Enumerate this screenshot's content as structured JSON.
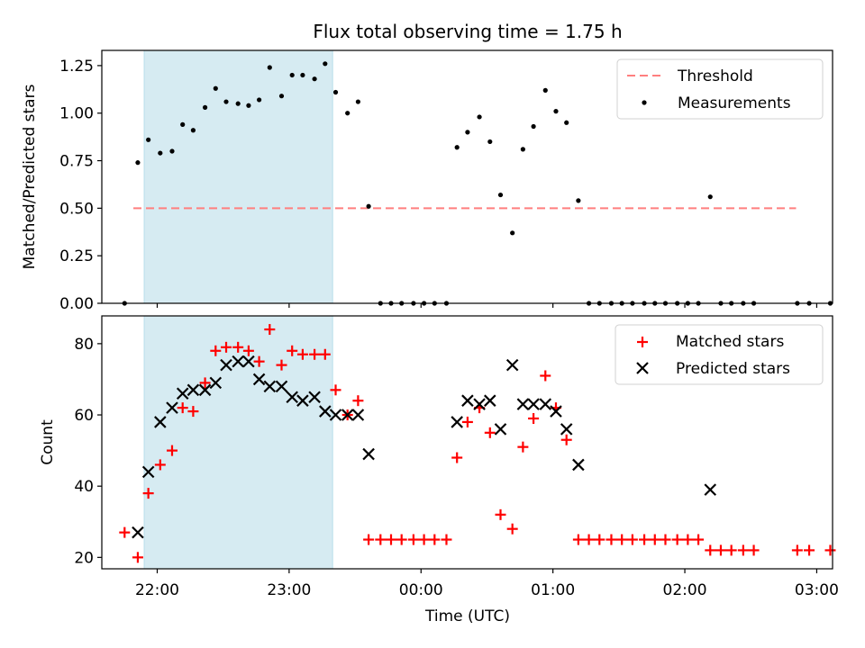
{
  "chart_data": {
    "title": "Flux total observing time = 1.75 h",
    "xlabel": "Time (UTC)",
    "x_unit_note": "hours past 21:00 UTC",
    "x_ticks": [
      {
        "value": 1,
        "label": "22:00"
      },
      {
        "value": 2,
        "label": "23:00"
      },
      {
        "value": 3,
        "label": "00:00"
      },
      {
        "value": 4,
        "label": "01:00"
      },
      {
        "value": 5,
        "label": "02:00"
      },
      {
        "value": 6,
        "label": "03:00"
      }
    ],
    "xlim": [
      0.58,
      6.12
    ],
    "shaded_region": {
      "from": 0.58,
      "to": 2.33,
      "color": "#add8e6"
    },
    "panels": [
      {
        "type": "scatter",
        "ylabel": "Matched/Predicted stars",
        "ylim": [
          0,
          1.33
        ],
        "y_ticks": [
          "0.00",
          "0.25",
          "0.50",
          "0.75",
          "1.00",
          "1.25"
        ],
        "y_tick_values": [
          0,
          0.25,
          0.5,
          0.75,
          1.0,
          1.25
        ],
        "legend_position": "top-right",
        "threshold": {
          "name": "Threshold",
          "y": 0.5,
          "x_range": [
            0.58,
            5.85
          ],
          "color": "#ff7f7f"
        },
        "series": [
          {
            "name": "Measurements",
            "color": "#000000",
            "marker": "dot",
            "points": [
              [
                0.5,
                0.0
              ],
              [
                0.6,
                0.74
              ],
              [
                0.68,
                0.86
              ],
              [
                0.77,
                0.79
              ],
              [
                0.86,
                0.8
              ],
              [
                0.94,
                0.94
              ],
              [
                1.02,
                0.91
              ],
              [
                1.11,
                1.03
              ],
              [
                1.19,
                1.13
              ],
              [
                1.27,
                1.06
              ],
              [
                1.36,
                1.05
              ],
              [
                1.44,
                1.04
              ],
              [
                1.52,
                1.07
              ],
              [
                1.6,
                1.24
              ],
              [
                1.69,
                1.09
              ],
              [
                1.77,
                1.2
              ],
              [
                1.85,
                1.2
              ],
              [
                1.94,
                1.18
              ],
              [
                2.02,
                1.26
              ],
              [
                2.1,
                1.11
              ],
              [
                2.19,
                1.0
              ],
              [
                2.27,
                1.06
              ],
              [
                2.35,
                0.51
              ],
              [
                2.44,
                0.0
              ],
              [
                2.52,
                0.0
              ],
              [
                2.6,
                0.0
              ],
              [
                2.69,
                0.0
              ],
              [
                2.77,
                0.0
              ],
              [
                2.85,
                0.0
              ],
              [
                2.94,
                0.0
              ],
              [
                3.02,
                0.82
              ],
              [
                3.1,
                0.9
              ],
              [
                3.19,
                0.98
              ],
              [
                3.27,
                0.85
              ],
              [
                3.35,
                0.57
              ],
              [
                3.44,
                0.37
              ],
              [
                3.52,
                0.81
              ],
              [
                3.6,
                0.93
              ],
              [
                3.69,
                1.12
              ],
              [
                3.77,
                1.01
              ],
              [
                3.85,
                0.95
              ],
              [
                3.94,
                0.54
              ],
              [
                4.02,
                0.0
              ],
              [
                4.1,
                0.0
              ],
              [
                4.19,
                0.0
              ],
              [
                4.27,
                0.0
              ],
              [
                4.35,
                0.0
              ],
              [
                4.44,
                0.0
              ],
              [
                4.52,
                0.0
              ],
              [
                4.6,
                0.0
              ],
              [
                4.69,
                0.0
              ],
              [
                4.77,
                0.0
              ],
              [
                4.85,
                0.0
              ],
              [
                4.94,
                0.56
              ],
              [
                5.02,
                0.0
              ],
              [
                5.1,
                0.0
              ],
              [
                5.19,
                0.0
              ],
              [
                5.27,
                0.0
              ],
              [
                5.6,
                0.0
              ],
              [
                5.69,
                0.0
              ],
              [
                5.85,
                0.0
              ],
              [
                5.94,
                0.0
              ]
            ]
          }
        ]
      },
      {
        "type": "scatter",
        "ylabel": "Count",
        "ylim": [
          16.8,
          87.8
        ],
        "y_ticks": [
          "20",
          "40",
          "60",
          "80"
        ],
        "y_tick_values": [
          20,
          40,
          60,
          80
        ],
        "legend_position": "top-right",
        "series": [
          {
            "name": "Matched stars",
            "color": "#ff0000",
            "marker": "plus",
            "points": [
              [
                0.5,
                27
              ],
              [
                0.6,
                20
              ],
              [
                0.68,
                38
              ],
              [
                0.77,
                46
              ],
              [
                0.86,
                50
              ],
              [
                0.94,
                62
              ],
              [
                1.02,
                61
              ],
              [
                1.11,
                69
              ],
              [
                1.19,
                78
              ],
              [
                1.27,
                79
              ],
              [
                1.36,
                79
              ],
              [
                1.44,
                78
              ],
              [
                1.52,
                75
              ],
              [
                1.6,
                84
              ],
              [
                1.69,
                74
              ],
              [
                1.77,
                78
              ],
              [
                1.85,
                77
              ],
              [
                1.94,
                77
              ],
              [
                2.02,
                77
              ],
              [
                2.1,
                67
              ],
              [
                2.19,
                60
              ],
              [
                2.27,
                64
              ],
              [
                2.35,
                25
              ],
              [
                2.44,
                25
              ],
              [
                2.52,
                25
              ],
              [
                2.6,
                25
              ],
              [
                2.69,
                25
              ],
              [
                2.77,
                25
              ],
              [
                2.85,
                25
              ],
              [
                2.94,
                25
              ],
              [
                3.02,
                48
              ],
              [
                3.1,
                58
              ],
              [
                3.19,
                62
              ],
              [
                3.27,
                55
              ],
              [
                3.35,
                32
              ],
              [
                3.44,
                28
              ],
              [
                3.52,
                51
              ],
              [
                3.6,
                59
              ],
              [
                3.69,
                71
              ],
              [
                3.77,
                62
              ],
              [
                3.85,
                53
              ],
              [
                3.94,
                25
              ],
              [
                4.02,
                25
              ],
              [
                4.1,
                25
              ],
              [
                4.19,
                25
              ],
              [
                4.27,
                25
              ],
              [
                4.35,
                25
              ],
              [
                4.44,
                25
              ],
              [
                4.52,
                25
              ],
              [
                4.6,
                25
              ],
              [
                4.69,
                25
              ],
              [
                4.77,
                25
              ],
              [
                4.85,
                25
              ],
              [
                4.94,
                22
              ],
              [
                5.02,
                22
              ],
              [
                5.1,
                22
              ],
              [
                5.19,
                22
              ],
              [
                5.27,
                22
              ],
              [
                5.6,
                22
              ],
              [
                5.69,
                22
              ],
              [
                5.85,
                22
              ],
              [
                5.94,
                22
              ]
            ]
          },
          {
            "name": "Predicted stars",
            "color": "#000000",
            "marker": "x",
            "points": [
              [
                0.6,
                27
              ],
              [
                0.68,
                44
              ],
              [
                0.77,
                58
              ],
              [
                0.86,
                62
              ],
              [
                0.94,
                66
              ],
              [
                1.02,
                67
              ],
              [
                1.11,
                67
              ],
              [
                1.19,
                69
              ],
              [
                1.27,
                74
              ],
              [
                1.36,
                75
              ],
              [
                1.44,
                75
              ],
              [
                1.52,
                70
              ],
              [
                1.6,
                68
              ],
              [
                1.69,
                68
              ],
              [
                1.77,
                65
              ],
              [
                1.85,
                64
              ],
              [
                1.94,
                65
              ],
              [
                2.02,
                61
              ],
              [
                2.1,
                60
              ],
              [
                2.19,
                60
              ],
              [
                2.27,
                60
              ],
              [
                2.35,
                49
              ],
              [
                3.02,
                58
              ],
              [
                3.1,
                64
              ],
              [
                3.19,
                63
              ],
              [
                3.27,
                64
              ],
              [
                3.35,
                56
              ],
              [
                3.44,
                74
              ],
              [
                3.52,
                63
              ],
              [
                3.6,
                63
              ],
              [
                3.69,
                63
              ],
              [
                3.77,
                61
              ],
              [
                3.85,
                56
              ],
              [
                3.94,
                46
              ],
              [
                4.94,
                39
              ]
            ]
          }
        ]
      }
    ]
  }
}
